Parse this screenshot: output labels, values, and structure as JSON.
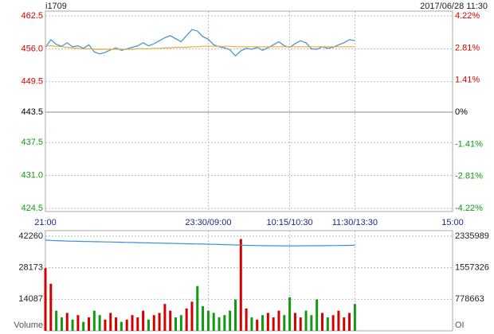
{
  "header": {
    "symbol": "i1709",
    "datetime": "2017/06/28 11:30"
  },
  "chart_data": [
    {
      "type": "line",
      "up_color": "#d40000",
      "down_color": "#119911",
      "flat_color": "#000000",
      "grid": true,
      "x": [
        0,
        5,
        10,
        15,
        20,
        25,
        30,
        35,
        40,
        45,
        50,
        55,
        60,
        65,
        70,
        75,
        80,
        85,
        90,
        95,
        100,
        105,
        110,
        115,
        120,
        125,
        130,
        135,
        140,
        145,
        150,
        155,
        160,
        165,
        170,
        175,
        180,
        185,
        190,
        195,
        200,
        205,
        210,
        215,
        220,
        225,
        230,
        235,
        240,
        245,
        250,
        255,
        260,
        265,
        270,
        275,
        280,
        285
      ],
      "xlim": [
        0,
        375
      ],
      "xticks": [
        {
          "value": 0,
          "label": "21:00"
        },
        {
          "value": 150,
          "label": "23:30/09:00"
        },
        {
          "value": 225,
          "label": "10:15/10:30"
        },
        {
          "value": 285,
          "label": "11:30/13:30"
        },
        {
          "value": 375,
          "label": "15:00"
        }
      ],
      "ylim": [
        424.5,
        462.5
      ],
      "yticks": [
        462.5,
        {
          "value": 456,
          "label": "456.0"
        },
        449.5,
        443.5,
        437.5,
        {
          "value": 431,
          "label": "431.0"
        },
        424.5
      ],
      "y2lim": [
        -4.22,
        4.22
      ],
      "y2ticks": [
        {
          "value": 4.22,
          "label": "4.22%"
        },
        {
          "value": 2.81,
          "label": "2.81%"
        },
        {
          "value": 1.41,
          "label": "1.41%"
        },
        {
          "value": 0,
          "label": "0%"
        },
        {
          "value": -1.41,
          "label": "-1.41%"
        },
        {
          "value": -2.81,
          "label": "-2.81%"
        },
        {
          "value": -4.22,
          "label": "-4.22%"
        }
      ],
      "series": [
        {
          "color": "#3d8fd8",
          "values": [
            456.3,
            457.8,
            456.9,
            456.5,
            457.2,
            456.4,
            456.6,
            456.1,
            456.8,
            455.4,
            455.0,
            455.3,
            455.8,
            456.2,
            455.7,
            456.0,
            456.3,
            456.6,
            457.2,
            456.6,
            457.0,
            457.6,
            458.2,
            458.6,
            458.0,
            457.4,
            458.6,
            459.8,
            459.5,
            458.4,
            457.9,
            456.8,
            456.4,
            456.2,
            455.8,
            454.6,
            455.6,
            456.1,
            455.9,
            456.3,
            455.7,
            456.2,
            456.8,
            457.4,
            456.6,
            456.3,
            457.0,
            457.6,
            457.2,
            456.0,
            455.9,
            456.4,
            456.1,
            456.3,
            456.8,
            457.2,
            457.8,
            457.6
          ]
        },
        {
          "color": "#e8ae3c",
          "values": [
            456.6,
            456.6,
            456.5,
            456.4,
            456.3,
            456.2,
            456.1,
            456.0,
            456.0,
            455.9,
            455.9,
            455.9,
            455.9,
            455.9,
            455.9,
            455.9,
            455.9,
            456.0,
            456.0,
            456.0,
            456.1,
            456.1,
            456.2,
            456.2,
            456.3,
            456.3,
            456.3,
            456.4,
            456.4,
            456.5,
            456.5,
            456.5,
            456.5,
            456.5,
            456.5,
            456.4,
            456.4,
            456.4,
            456.4,
            456.4,
            456.4,
            456.4,
            456.4,
            456.4,
            456.4,
            456.4,
            456.4,
            456.4,
            456.4,
            456.4,
            456.4,
            456.4,
            456.4,
            456.4,
            456.4,
            456.4,
            456.4,
            456.4
          ]
        }
      ]
    },
    {
      "type": "bar",
      "up_color": "#d40000",
      "down_color": "#119911",
      "volume_label": "Volume",
      "oi_label": "OI",
      "x": [
        0,
        5,
        10,
        15,
        20,
        25,
        30,
        35,
        40,
        45,
        50,
        55,
        60,
        65,
        70,
        75,
        80,
        85,
        90,
        95,
        100,
        105,
        110,
        115,
        120,
        125,
        130,
        135,
        140,
        145,
        150,
        155,
        160,
        165,
        170,
        175,
        180,
        185,
        190,
        195,
        200,
        205,
        210,
        215,
        220,
        225,
        230,
        235,
        240,
        245,
        250,
        255,
        260,
        265,
        270,
        275,
        280,
        285
      ],
      "xlim": [
        0,
        375
      ],
      "ylim": [
        0,
        42260
      ],
      "yticks": [
        42260,
        28173,
        14087
      ],
      "y2lim": [
        0,
        2335989
      ],
      "y2ticks": [
        2335989,
        1557326,
        778663
      ],
      "series": [
        {
          "values": [
            28000,
            21000,
            9000,
            6000,
            8000,
            5000,
            7000,
            4000,
            6000,
            9000,
            7000,
            5000,
            8000,
            6000,
            4000,
            5000,
            7000,
            6000,
            9000,
            5000,
            7000,
            8000,
            12000,
            9000,
            6000,
            7000,
            10000,
            13000,
            20000,
            11000,
            9000,
            8000,
            6000,
            7000,
            9000,
            14000,
            41000,
            10000,
            6000,
            5000,
            7000,
            8000,
            6000,
            9000,
            7000,
            15000,
            8000,
            6000,
            9000,
            7000,
            14000,
            8000,
            6000,
            7000,
            9000,
            6000,
            8000,
            12000
          ]
        },
        {
          "color": "#3d8fd8",
          "axis": "y2",
          "values": [
            2240000,
            2232000,
            2226000,
            2221000,
            2217000,
            2213000,
            2210000,
            2207000,
            2204000,
            2201000,
            2198000,
            2195000,
            2192000,
            2189000,
            2186000,
            2183000,
            2180000,
            2177000,
            2174000,
            2171000,
            2168000,
            2165000,
            2162000,
            2159000,
            2156000,
            2153000,
            2150000,
            2147000,
            2144000,
            2141000,
            2138000,
            2135000,
            2131000,
            2128000,
            2124000,
            2120000,
            2115000,
            2111000,
            2108000,
            2105000,
            2103000,
            2101000,
            2100000,
            2099000,
            2099000,
            2099000,
            2099000,
            2099000,
            2100000,
            2100000,
            2101000,
            2102000,
            2103000,
            2104000,
            2106000,
            2108000,
            2110000,
            2112000
          ]
        }
      ]
    }
  ]
}
